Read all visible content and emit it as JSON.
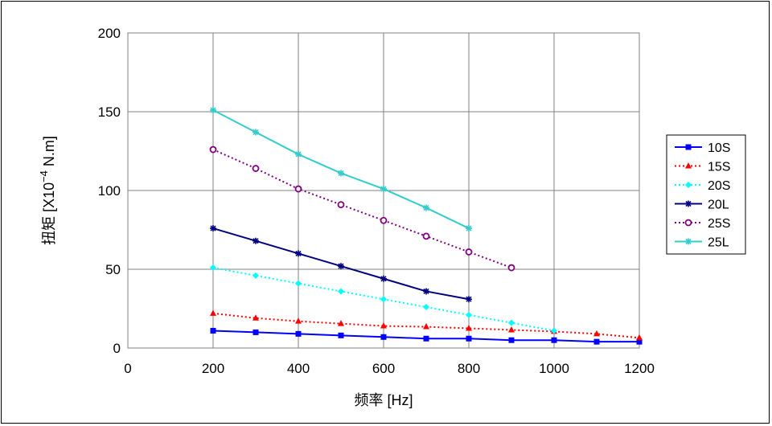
{
  "chart_data": {
    "type": "line",
    "xlabel": "频率 [Hz]",
    "ylabel_main": "扭矩 [X10",
    "ylabel_sup": "−4",
    "ylabel_tail": " N.m]",
    "xlim": [
      0,
      1200
    ],
    "ylim": [
      0,
      200
    ],
    "x_ticks": [
      "0",
      "200",
      "400",
      "600",
      "800",
      "1000",
      "1200"
    ],
    "y_ticks": [
      "0",
      "50",
      "100",
      "150",
      "200"
    ],
    "grid": true,
    "legend_position": "right",
    "series": [
      {
        "name": "10S",
        "color": "#0000ff",
        "dash": "solid",
        "marker": "square",
        "x": [
          200,
          300,
          400,
          500,
          600,
          700,
          800,
          900,
          1000,
          1100,
          1200
        ],
        "y": [
          11,
          10,
          9,
          8,
          7,
          6,
          6,
          5,
          5,
          4,
          4
        ]
      },
      {
        "name": "15S",
        "color": "#ff0000",
        "dash": "dotted",
        "marker": "triangle",
        "x": [
          200,
          300,
          400,
          500,
          600,
          700,
          800,
          900,
          1000,
          1100,
          1200
        ],
        "y": [
          22,
          19,
          17,
          15.5,
          14,
          13.5,
          12.5,
          11.5,
          10.5,
          9,
          6.5
        ]
      },
      {
        "name": "20S",
        "color": "#00ffff",
        "dash": "dotted",
        "marker": "diamond",
        "x": [
          200,
          300,
          400,
          500,
          600,
          700,
          800,
          900,
          1000
        ],
        "y": [
          51,
          46,
          41,
          36,
          31,
          26,
          21,
          16,
          11
        ]
      },
      {
        "name": "20L",
        "color": "#000080",
        "dash": "solid",
        "marker": "star",
        "x": [
          200,
          300,
          400,
          500,
          600,
          700,
          800
        ],
        "y": [
          76,
          68,
          60,
          52,
          44,
          36,
          31
        ]
      },
      {
        "name": "25S",
        "color": "#800080",
        "dash": "dotted",
        "marker": "circle",
        "x": [
          200,
          300,
          400,
          500,
          600,
          700,
          800,
          900
        ],
        "y": [
          126,
          114,
          101,
          91,
          81,
          71,
          61,
          51
        ]
      },
      {
        "name": "25L",
        "color": "#33cccc",
        "dash": "solid",
        "marker": "star",
        "x": [
          200,
          300,
          400,
          500,
          600,
          700,
          800
        ],
        "y": [
          151,
          137,
          123,
          111,
          101,
          89,
          76
        ]
      }
    ]
  }
}
